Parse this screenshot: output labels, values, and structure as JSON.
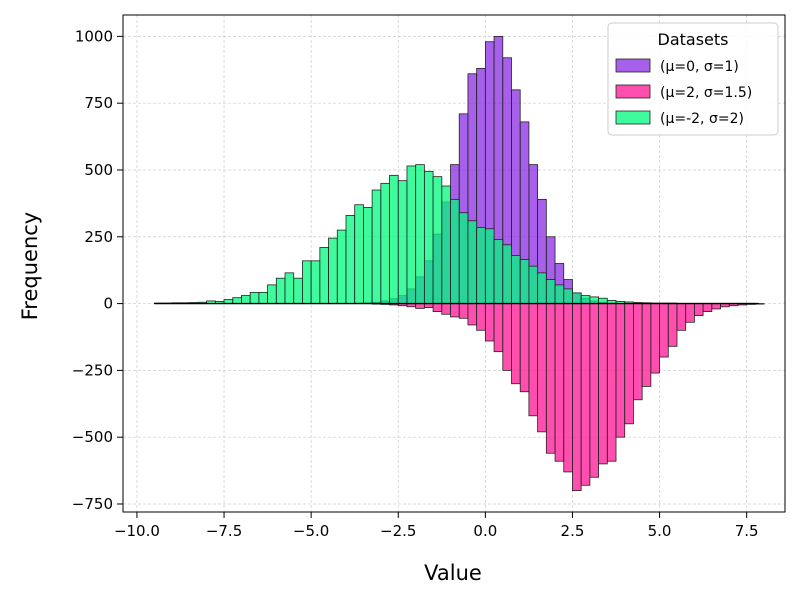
{
  "chart_data": {
    "type": "bar",
    "xlabel": "Value",
    "ylabel": "Frequency",
    "xlim": [
      -10.4,
      8.6
    ],
    "ylim": [
      -780,
      1080
    ],
    "x_ticks": [
      -10.0,
      -7.5,
      -5.0,
      -2.5,
      0.0,
      2.5,
      5.0,
      7.5
    ],
    "x_tick_labels": [
      "−10.0",
      "−7.5",
      "−5.0",
      "−2.5",
      "0.0",
      "2.5",
      "5.0",
      "7.5"
    ],
    "y_ticks": [
      -750,
      -500,
      -250,
      0,
      250,
      500,
      750,
      1000
    ],
    "y_tick_labels": [
      "−750",
      "−500",
      "−250",
      "0",
      "250",
      "500",
      "750",
      "1000"
    ],
    "grid": true,
    "legend": {
      "title": "Datasets",
      "position": "top-right"
    },
    "bin_width": 0.25,
    "series": [
      {
        "name": "(μ=0, σ=1)",
        "color": "#8A2BE2",
        "direction": "up",
        "bin_start": -3.75,
        "values": [
          2,
          3,
          5,
          10,
          18,
          30,
          55,
          100,
          160,
          260,
          380,
          520,
          710,
          860,
          880,
          980,
          1000,
          920,
          800,
          680,
          520,
          390,
          250,
          150,
          90,
          40,
          20,
          10,
          5,
          2
        ]
      },
      {
        "name": "(μ=2, σ=1.5)",
        "color": "#FF1493",
        "direction": "down",
        "bin_start": -3.25,
        "values": [
          2,
          3,
          5,
          8,
          12,
          18,
          15,
          30,
          40,
          50,
          55,
          80,
          100,
          140,
          180,
          250,
          300,
          330,
          420,
          480,
          560,
          590,
          630,
          700,
          680,
          650,
          600,
          590,
          500,
          450,
          360,
          310,
          260,
          200,
          160,
          100,
          70,
          45,
          30,
          20,
          12,
          8,
          5,
          3,
          2
        ]
      },
      {
        "name": "(μ=-2, σ=2)",
        "color": "#00FA7D",
        "direction": "up",
        "bin_start": -9.5,
        "values": [
          2,
          2,
          3,
          3,
          4,
          5,
          10,
          8,
          15,
          22,
          30,
          42,
          42,
          70,
          95,
          115,
          95,
          160,
          160,
          210,
          245,
          275,
          330,
          370,
          360,
          425,
          450,
          480,
          460,
          515,
          520,
          495,
          475,
          440,
          390,
          340,
          310,
          285,
          280,
          240,
          220,
          180,
          165,
          140,
          115,
          90,
          70,
          55,
          40,
          30,
          25,
          20,
          12,
          8,
          6,
          4,
          3,
          2,
          2,
          2,
          1,
          1,
          1,
          1,
          1,
          1,
          1,
          1,
          1
        ]
      }
    ]
  }
}
